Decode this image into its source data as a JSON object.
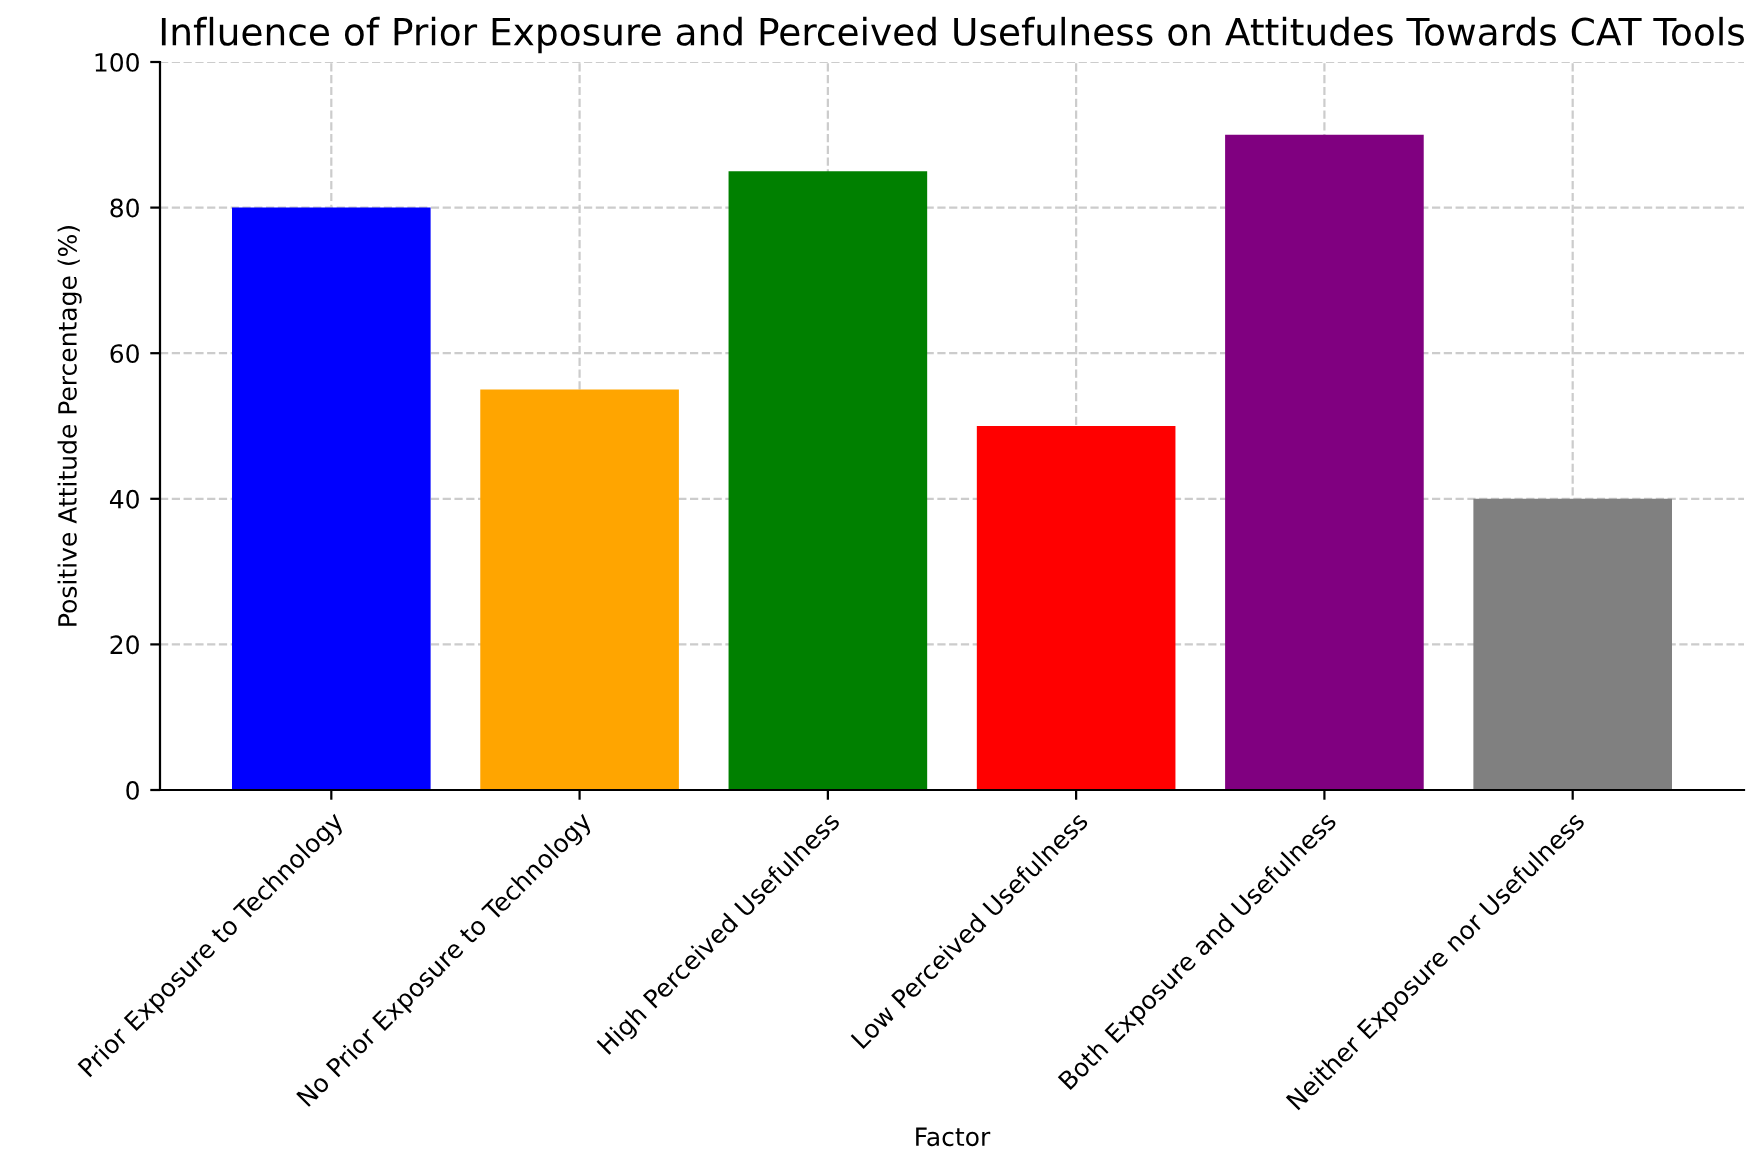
{
  "chart_data": {
    "type": "bar",
    "title": "Influence of Prior Exposure and Perceived Usefulness on Attitudes Towards CAT Tools",
    "xlabel": "Factor",
    "ylabel": "Positive Attitude Percentage (%)",
    "categories": [
      "Prior Exposure to Technology",
      "No Prior Exposure to Technology",
      "High Perceived Usefulness",
      "Low Perceived Usefulness",
      "Both Exposure and Usefulness",
      "Neither Exposure nor Usefulness"
    ],
    "values": [
      80,
      55,
      85,
      50,
      90,
      40
    ],
    "colors": [
      "#0000ff",
      "#ffa500",
      "#008000",
      "#ff0000",
      "#800080",
      "#808080"
    ],
    "ylim": [
      0,
      100
    ],
    "yticks": [
      0,
      20,
      40,
      60,
      80,
      100
    ],
    "grid": true
  }
}
